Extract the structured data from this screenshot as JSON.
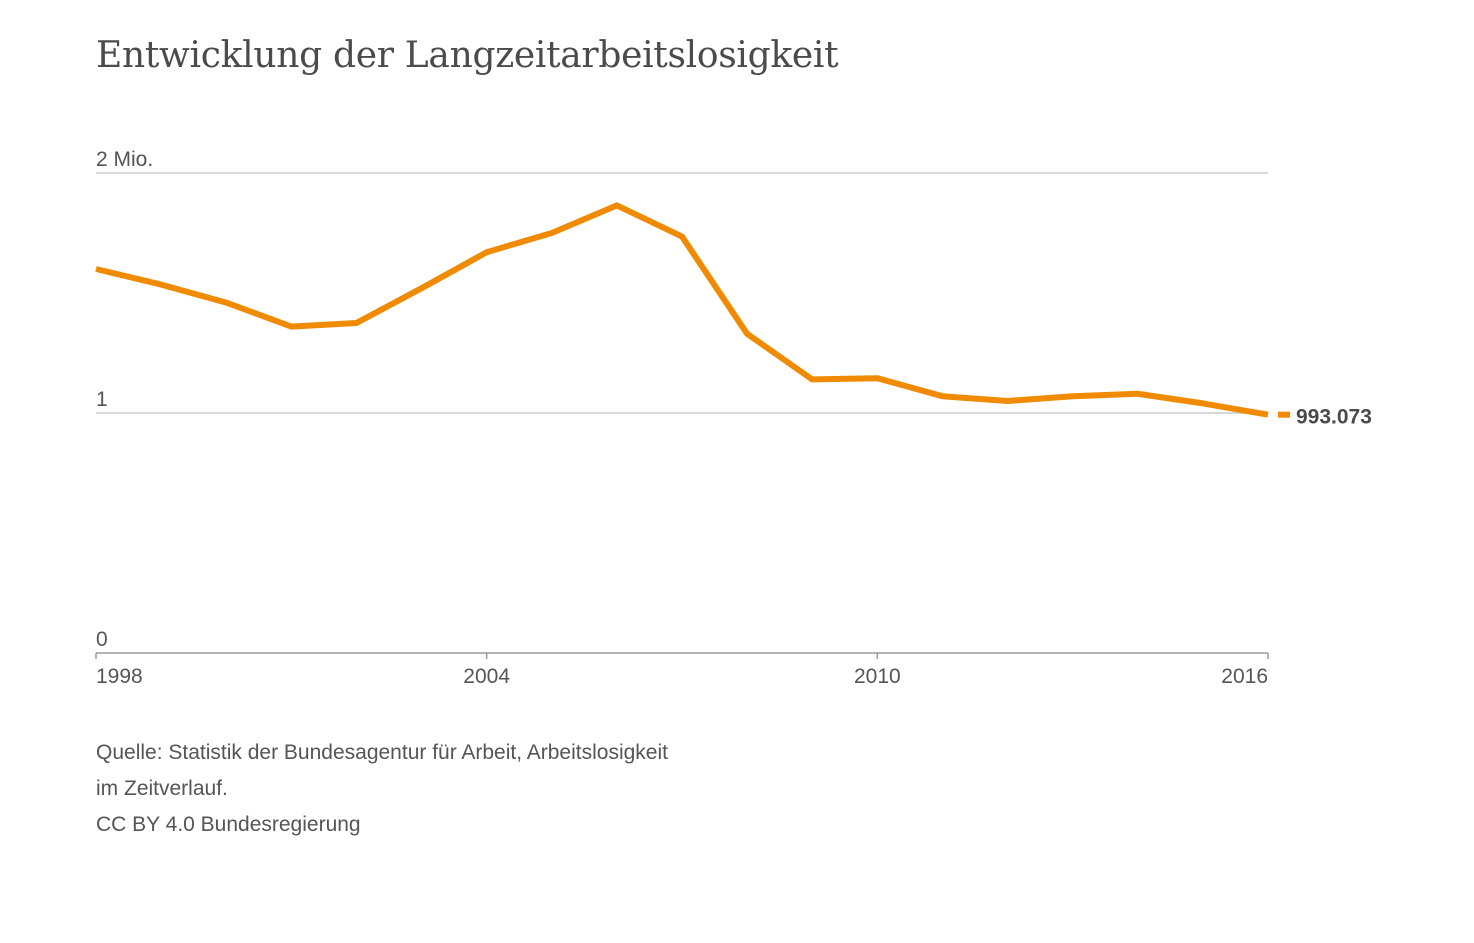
{
  "chart_data": {
    "type": "line",
    "title": "Entwicklung der Langzeitarbeitslosigkeit",
    "xlabel": "",
    "ylabel": "",
    "x": [
      1998,
      1999,
      2000,
      2001,
      2002,
      2003,
      2004,
      2005,
      2006,
      2007,
      2008,
      2009,
      2010,
      2011,
      2012,
      2013,
      2014,
      2015,
      2016
    ],
    "series": [
      {
        "values": [
          1.6,
          1.535,
          1.46,
          1.36,
          1.375,
          1.52,
          1.67,
          1.75,
          1.865,
          1.735,
          1.33,
          1.14,
          1.145,
          1.07,
          1.05,
          1.07,
          1.08,
          1.04,
          0.993073
        ],
        "color": "#f08a00"
      }
    ],
    "ylim": [
      0,
      2
    ],
    "xlim": [
      1998,
      2016
    ],
    "y_ticks": [
      {
        "value": 0,
        "label": "0"
      },
      {
        "value": 1,
        "label": "1"
      },
      {
        "value": 2,
        "label": "2 Mio."
      }
    ],
    "x_ticks": [
      {
        "value": 1998,
        "label": "1998"
      },
      {
        "value": 2004,
        "label": "2004"
      },
      {
        "value": 2010,
        "label": "2010"
      },
      {
        "value": 2016,
        "label": "2016"
      }
    ],
    "end_label": "993.073",
    "grid": true,
    "legend": "none",
    "colors": {
      "line": "#f08a00",
      "grid": "#cccccc",
      "axis": "#9a9a9a",
      "text": "#555555"
    }
  },
  "source": {
    "line1": "Quelle: Statistik der Bundesagentur für Arbeit, Arbeitslosigkeit",
    "line2": "im Zeitverlauf.",
    "line3": "CC BY 4.0 Bundesregierung"
  }
}
